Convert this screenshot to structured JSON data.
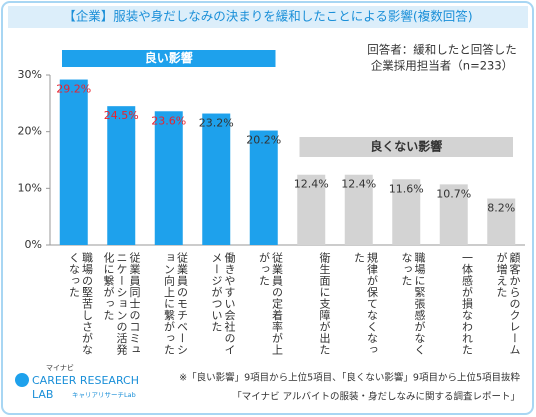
{
  "chart_data": {
    "type": "bar",
    "title": "【企業】服装や身だしなみの決まりを緩和したことによる影響(複数回答)",
    "note": [
      "回答者：緩和したと回答した",
      "企業採用担当者（n=233）"
    ],
    "categories": [
      "職場の堅苦しさがなくなった",
      "従業員同士のコミュニケーションの活発化に繋がった",
      "従業員のモチベーション向上に繋がった",
      "働きやすい会社のイメージがついた",
      "従業員の定着率が上がった",
      "衛生面に支障が出た",
      "規律が保てなくなった",
      "職場に緊張感がなくなった",
      "一体感が損なわれた",
      "顧客からのクレームが増えた"
    ],
    "series": [
      {
        "name": "良い影響",
        "color": "#1ea1ec",
        "values": [
          29.2,
          24.5,
          23.6,
          23.2,
          20.2,
          null,
          null,
          null,
          null,
          null
        ],
        "value_labels": [
          "29.2%",
          "24.5%",
          "23.6%",
          "23.2%",
          "20.2%",
          null,
          null,
          null,
          null,
          null
        ],
        "label_colors": [
          "#e8232f",
          "#e8232f",
          "#e8232f",
          "#333333",
          "#333333",
          null,
          null,
          null,
          null,
          null
        ]
      },
      {
        "name": "良くない影響",
        "color": "#d3d3d3",
        "values": [
          null,
          null,
          null,
          null,
          null,
          12.4,
          12.4,
          11.6,
          10.7,
          8.2
        ],
        "value_labels": [
          null,
          null,
          null,
          null,
          null,
          "12.4%",
          "12.4%",
          "11.6%",
          "10.7%",
          "8.2%"
        ],
        "label_colors": [
          null,
          null,
          null,
          null,
          null,
          "#333333",
          "#333333",
          "#333333",
          "#333333",
          "#333333"
        ]
      }
    ],
    "ylim": [
      0,
      30
    ],
    "yticks": [
      {
        "value": 0,
        "label": "0%"
      },
      {
        "value": 10,
        "label": "10%"
      },
      {
        "value": 20,
        "label": "20%"
      },
      {
        "value": 30,
        "label": "30%"
      }
    ],
    "grid": false,
    "footnote": "※「良い影響」9項目から上位5項目、「良くない影響」9項目から上位5項目抜粋",
    "source": "「マイナビ アルバイトの服装・身だしなみに関する調査レポート」",
    "logo": [
      "マイナビ",
      "CAREER RESEARCH",
      "LAB",
      "キャリアリサーチLab"
    ]
  }
}
